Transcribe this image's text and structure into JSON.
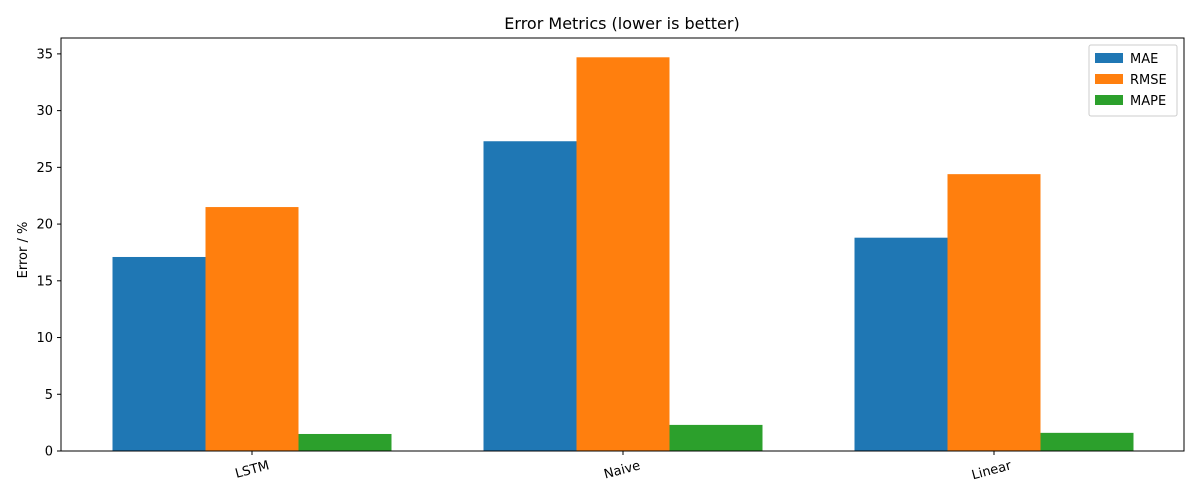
{
  "chart_data": {
    "type": "bar",
    "title": "Error Metrics (lower is better)",
    "xlabel": "",
    "ylabel": "Error / %",
    "categories": [
      "LSTM",
      "Naive",
      "Linear"
    ],
    "series": [
      {
        "name": "MAE",
        "color": "#1f77b4",
        "values": [
          17.1,
          27.3,
          18.8
        ]
      },
      {
        "name": "RMSE",
        "color": "#ff7f0e",
        "values": [
          21.5,
          34.7,
          24.4
        ]
      },
      {
        "name": "MAPE",
        "color": "#2ca02c",
        "values": [
          1.5,
          2.3,
          1.6
        ]
      }
    ],
    "ylim": [
      0,
      36.4
    ],
    "yticks": [
      0,
      5,
      10,
      15,
      20,
      25,
      30,
      35
    ],
    "xtick_rotation": -15,
    "grid": false,
    "legend": "top-right"
  }
}
